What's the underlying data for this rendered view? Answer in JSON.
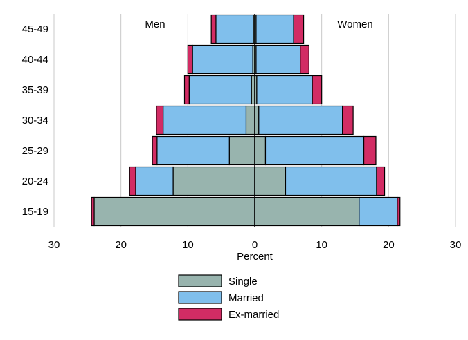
{
  "chart_data": {
    "type": "bar",
    "orientation": "horizontal",
    "stacked": true,
    "layout": "population-pyramid",
    "categories": [
      "15-19",
      "20-24",
      "25-29",
      "30-34",
      "35-39",
      "40-44",
      "45-49"
    ],
    "groups": [
      {
        "name": "Men",
        "side": "left"
      },
      {
        "name": "Women",
        "side": "right"
      }
    ],
    "series": [
      {
        "name": "Single",
        "color": "#98b4ae",
        "men": [
          24.0,
          12.2,
          3.8,
          1.3,
          0.5,
          0.3,
          0.2
        ],
        "women": [
          15.6,
          4.6,
          1.6,
          0.6,
          0.3,
          0.2,
          0.2
        ]
      },
      {
        "name": "Married",
        "color": "#80bfec",
        "men": [
          0.0,
          5.6,
          10.8,
          12.4,
          9.3,
          9.0,
          5.6
        ],
        "women": [
          5.7,
          13.6,
          14.7,
          12.5,
          8.3,
          6.6,
          5.6
        ]
      },
      {
        "name": "Ex-married",
        "color": "#d22c64",
        "men": [
          0.4,
          0.9,
          0.7,
          1.0,
          0.7,
          0.7,
          0.7
        ],
        "women": [
          0.4,
          1.2,
          1.8,
          1.6,
          1.4,
          1.3,
          1.5
        ]
      }
    ],
    "xlabel": "Percent",
    "ylabel": "",
    "xlim": [
      -30,
      30
    ],
    "xticks": [
      -30,
      -20,
      -10,
      0,
      10,
      20,
      30
    ],
    "xtick_labels": [
      "30",
      "20",
      "10",
      "0",
      "10",
      "20",
      "30"
    ],
    "grid": true,
    "legend_position": "bottom",
    "men_label": "Men",
    "women_label": "Women"
  }
}
